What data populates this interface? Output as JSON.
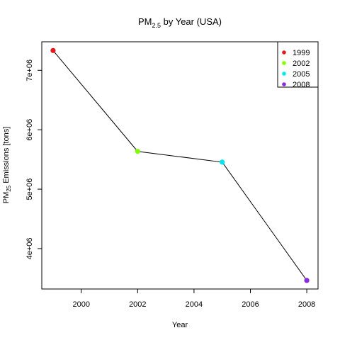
{
  "chart_data": {
    "type": "line",
    "title": {
      "main": "PM",
      "subscript": "2.5",
      "rest": " by Year (USA)"
    },
    "xlabel": "Year",
    "ylabel": {
      "main": "PM",
      "subscript": "25",
      "rest": " Emissions [tons]"
    },
    "x": [
      1999,
      2002,
      2005,
      2008
    ],
    "values": [
      7332967,
      5635780,
      5454703,
      3464206
    ],
    "point_colors": [
      "#e31a1c",
      "#7fff00",
      "#00e5ee",
      "#8a2be2"
    ],
    "line_color": "#000000",
    "xlim": [
      1998.6,
      2008.4
    ],
    "ylim": [
      3320000,
      7480000
    ],
    "xticks": [
      2000,
      2002,
      2004,
      2006,
      2008
    ],
    "xtick_labels": [
      "2000",
      "2002",
      "2004",
      "2006",
      "2008"
    ],
    "yticks": [
      4000000,
      5000000,
      6000000,
      7000000
    ],
    "ytick_labels": [
      "4e+06",
      "5e+06",
      "6e+06",
      "7e+06"
    ],
    "grid": false,
    "legend": {
      "placement": "top-right",
      "entries": [
        "1999",
        "2002",
        "2005",
        "2008"
      ],
      "colors": [
        "#e31a1c",
        "#7fff00",
        "#00e5ee",
        "#8a2be2"
      ]
    }
  }
}
